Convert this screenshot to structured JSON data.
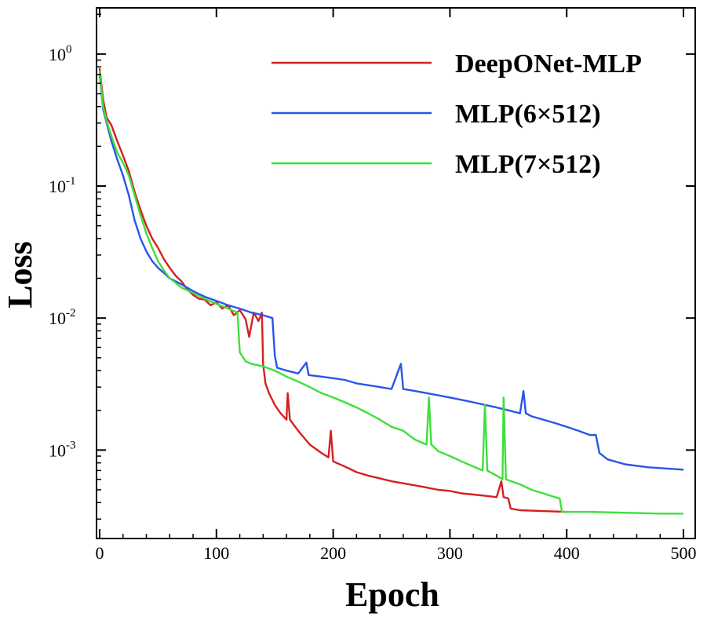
{
  "chart_data": {
    "type": "line",
    "title": "",
    "xlabel": "Epoch",
    "ylabel": "Loss",
    "xlim": [
      0,
      500
    ],
    "ylim_log10": [
      -3.67,
      0.35
    ],
    "yscale": "log",
    "grid": false,
    "legend_position": "top-right",
    "x_ticks": [
      "0",
      "100",
      "200",
      "300",
      "400",
      "500"
    ],
    "y_ticks": [
      {
        "base": "10",
        "exp": "0",
        "value": 1
      },
      {
        "base": "10",
        "exp": "-1",
        "value": 0.1
      },
      {
        "base": "10",
        "exp": "-2",
        "value": 0.01
      },
      {
        "base": "10",
        "exp": "-3",
        "value": 0.001
      }
    ],
    "series": [
      {
        "name": "DeepONet-MLP",
        "color": "#d42020",
        "points": [
          [
            0,
            0.78
          ],
          [
            3,
            0.45
          ],
          [
            6,
            0.33
          ],
          [
            10,
            0.29
          ],
          [
            15,
            0.22
          ],
          [
            20,
            0.17
          ],
          [
            25,
            0.13
          ],
          [
            30,
            0.09
          ],
          [
            35,
            0.066
          ],
          [
            40,
            0.05
          ],
          [
            45,
            0.04
          ],
          [
            50,
            0.034
          ],
          [
            55,
            0.028
          ],
          [
            60,
            0.024
          ],
          [
            65,
            0.021
          ],
          [
            70,
            0.019
          ],
          [
            75,
            0.0165
          ],
          [
            80,
            0.015
          ],
          [
            85,
            0.014
          ],
          [
            90,
            0.0138
          ],
          [
            95,
            0.0125
          ],
          [
            100,
            0.0132
          ],
          [
            105,
            0.0118
          ],
          [
            110,
            0.0125
          ],
          [
            115,
            0.0105
          ],
          [
            120,
            0.0115
          ],
          [
            125,
            0.0098
          ],
          [
            128,
            0.0072
          ],
          [
            132,
            0.011
          ],
          [
            136,
            0.0095
          ],
          [
            139,
            0.011
          ],
          [
            140,
            0.0045
          ],
          [
            142,
            0.0032
          ],
          [
            145,
            0.0027
          ],
          [
            150,
            0.0022
          ],
          [
            155,
            0.0019
          ],
          [
            160,
            0.0017
          ],
          [
            161,
            0.0027
          ],
          [
            163,
            0.0017
          ],
          [
            170,
            0.0014
          ],
          [
            180,
            0.0011
          ],
          [
            190,
            0.00095
          ],
          [
            196,
            0.00088
          ],
          [
            198,
            0.0014
          ],
          [
            200,
            0.00082
          ],
          [
            210,
            0.00075
          ],
          [
            220,
            0.00068
          ],
          [
            230,
            0.00064
          ],
          [
            240,
            0.00061
          ],
          [
            250,
            0.00058
          ],
          [
            260,
            0.00056
          ],
          [
            270,
            0.00054
          ],
          [
            280,
            0.00052
          ],
          [
            290,
            0.0005
          ],
          [
            300,
            0.00049
          ],
          [
            310,
            0.00047
          ],
          [
            320,
            0.00046
          ],
          [
            330,
            0.00045
          ],
          [
            340,
            0.00044
          ],
          [
            344,
            0.00058
          ],
          [
            346,
            0.00044
          ],
          [
            350,
            0.00043
          ],
          [
            352,
            0.00036
          ],
          [
            360,
            0.00035
          ],
          [
            380,
            0.000345
          ],
          [
            400,
            0.00034
          ]
        ]
      },
      {
        "name": "MLP(6×512)",
        "color": "#2a55e8",
        "points": [
          [
            0,
            0.7
          ],
          [
            3,
            0.38
          ],
          [
            6,
            0.3
          ],
          [
            10,
            0.22
          ],
          [
            15,
            0.16
          ],
          [
            20,
            0.12
          ],
          [
            25,
            0.085
          ],
          [
            30,
            0.055
          ],
          [
            35,
            0.04
          ],
          [
            40,
            0.032
          ],
          [
            45,
            0.027
          ],
          [
            50,
            0.024
          ],
          [
            55,
            0.022
          ],
          [
            60,
            0.02
          ],
          [
            65,
            0.019
          ],
          [
            70,
            0.018
          ],
          [
            80,
            0.016
          ],
          [
            90,
            0.0145
          ],
          [
            100,
            0.0135
          ],
          [
            110,
            0.0125
          ],
          [
            120,
            0.0118
          ],
          [
            130,
            0.011
          ],
          [
            140,
            0.0105
          ],
          [
            148,
            0.01
          ],
          [
            150,
            0.0052
          ],
          [
            152,
            0.0042
          ],
          [
            160,
            0.004
          ],
          [
            170,
            0.0038
          ],
          [
            177,
            0.0046
          ],
          [
            179,
            0.0037
          ],
          [
            190,
            0.0036
          ],
          [
            200,
            0.0035
          ],
          [
            210,
            0.0034
          ],
          [
            220,
            0.0032
          ],
          [
            230,
            0.0031
          ],
          [
            240,
            0.003
          ],
          [
            250,
            0.0029
          ],
          [
            258,
            0.0045
          ],
          [
            260,
            0.0029
          ],
          [
            270,
            0.0028
          ],
          [
            280,
            0.0027
          ],
          [
            290,
            0.0026
          ],
          [
            300,
            0.0025
          ],
          [
            310,
            0.0024
          ],
          [
            320,
            0.0023
          ],
          [
            330,
            0.0022
          ],
          [
            340,
            0.0021
          ],
          [
            350,
            0.002
          ],
          [
            360,
            0.0019
          ],
          [
            363,
            0.0028
          ],
          [
            365,
            0.0019
          ],
          [
            370,
            0.0018
          ],
          [
            380,
            0.0017
          ],
          [
            390,
            0.0016
          ],
          [
            400,
            0.0015
          ],
          [
            410,
            0.0014
          ],
          [
            420,
            0.0013
          ],
          [
            425,
            0.0013
          ],
          [
            428,
            0.00095
          ],
          [
            435,
            0.00085
          ],
          [
            450,
            0.00078
          ],
          [
            470,
            0.00074
          ],
          [
            490,
            0.00072
          ],
          [
            500,
            0.00071
          ]
        ]
      },
      {
        "name": "MLP(7×512)",
        "color": "#3ee03a",
        "points": [
          [
            0,
            0.75
          ],
          [
            3,
            0.4
          ],
          [
            6,
            0.31
          ],
          [
            10,
            0.24
          ],
          [
            15,
            0.18
          ],
          [
            20,
            0.15
          ],
          [
            25,
            0.12
          ],
          [
            30,
            0.085
          ],
          [
            35,
            0.06
          ],
          [
            40,
            0.044
          ],
          [
            45,
            0.034
          ],
          [
            50,
            0.027
          ],
          [
            55,
            0.023
          ],
          [
            60,
            0.02
          ],
          [
            65,
            0.0185
          ],
          [
            70,
            0.017
          ],
          [
            80,
            0.0155
          ],
          [
            90,
            0.014
          ],
          [
            100,
            0.0128
          ],
          [
            110,
            0.0118
          ],
          [
            118,
            0.011
          ],
          [
            120,
            0.0055
          ],
          [
            125,
            0.0047
          ],
          [
            130,
            0.0045
          ],
          [
            140,
            0.0043
          ],
          [
            150,
            0.004
          ],
          [
            160,
            0.0036
          ],
          [
            170,
            0.0033
          ],
          [
            180,
            0.003
          ],
          [
            190,
            0.0027
          ],
          [
            200,
            0.0025
          ],
          [
            210,
            0.0023
          ],
          [
            220,
            0.0021
          ],
          [
            230,
            0.0019
          ],
          [
            240,
            0.0017
          ],
          [
            250,
            0.0015
          ],
          [
            260,
            0.0014
          ],
          [
            270,
            0.0012
          ],
          [
            280,
            0.0011
          ],
          [
            282,
            0.0025
          ],
          [
            284,
            0.0011
          ],
          [
            290,
            0.00098
          ],
          [
            300,
            0.0009
          ],
          [
            310,
            0.00082
          ],
          [
            320,
            0.00075
          ],
          [
            328,
            0.0007
          ],
          [
            330,
            0.0022
          ],
          [
            332,
            0.0007
          ],
          [
            340,
            0.00064
          ],
          [
            345,
            0.0006
          ],
          [
            346,
            0.0025
          ],
          [
            348,
            0.0006
          ],
          [
            360,
            0.00055
          ],
          [
            370,
            0.0005
          ],
          [
            380,
            0.00047
          ],
          [
            390,
            0.00044
          ],
          [
            394,
            0.00043
          ],
          [
            396,
            0.00034
          ],
          [
            420,
            0.00034
          ],
          [
            450,
            0.000335
          ],
          [
            480,
            0.00033
          ],
          [
            500,
            0.00033
          ]
        ]
      }
    ]
  }
}
